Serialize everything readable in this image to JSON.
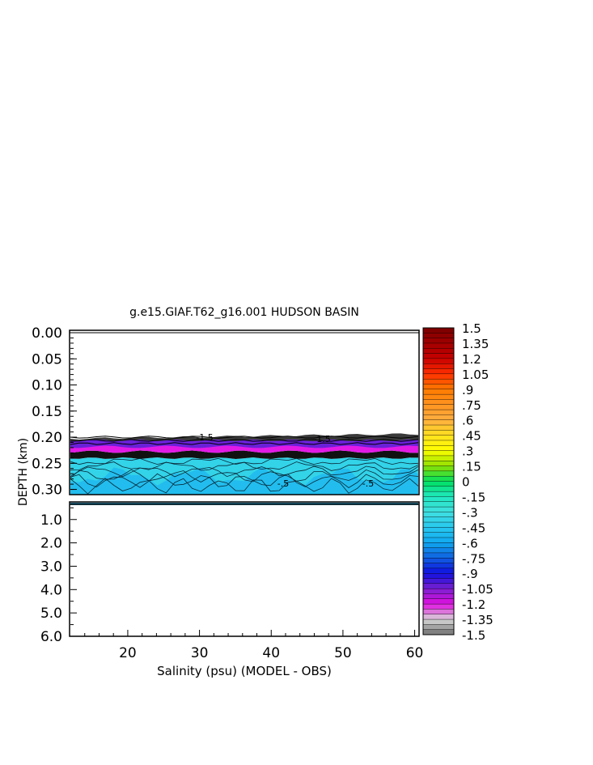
{
  "chart_data": {
    "type": "heatmap",
    "title": "g.e15.GIAF.T62_g16.001 HUDSON BASIN",
    "xlabel": "Salinity (psu) (MODEL - OBS)",
    "ylabel": "DEPTH (km)",
    "xlim": [
      12,
      60.5
    ],
    "x_ticks": [
      20,
      30,
      40,
      50,
      60
    ],
    "x_tick_labels": [
      "20",
      "30",
      "40",
      "50",
      "60"
    ],
    "upper_panel": {
      "ylim": [
        0.0,
        0.31
      ],
      "y_ticks": [
        0.0,
        0.05,
        0.1,
        0.15,
        0.2,
        0.25,
        0.3
      ],
      "y_tick_labels": [
        "0.00",
        "0.05",
        "0.10",
        "0.15",
        "0.20",
        "0.25",
        "0.30"
      ]
    },
    "lower_panel": {
      "ylim": [
        0.35,
        6.0
      ],
      "y_ticks": [
        1.0,
        2.0,
        3.0,
        4.0,
        5.0,
        6.0
      ],
      "y_tick_labels": [
        "1.0",
        "2.0",
        "3.0",
        "4.0",
        "5.0",
        "6.0"
      ]
    },
    "colorbar": {
      "range": [
        -1.5,
        1.5
      ],
      "labels": [
        "1.5",
        "1.35",
        "1.2",
        "1.05",
        ".9",
        ".75",
        ".6",
        ".45",
        ".3",
        ".15",
        "0",
        "-.15",
        "-.3",
        "-.45",
        "-.6",
        "-.75",
        "-.9",
        "-1.05",
        "-1.2",
        "-1.35",
        "-1.5"
      ]
    },
    "contour_labels": [
      "-1.5",
      "-1.5",
      "-.5",
      "-.5"
    ]
  }
}
